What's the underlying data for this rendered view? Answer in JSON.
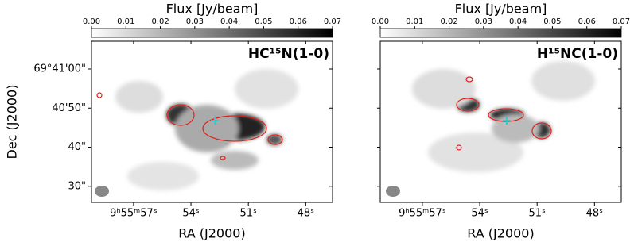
{
  "chart_data": [
    {
      "type": "heatmap",
      "title": "HC¹⁵N(1-0)",
      "colorbar_label": "Flux [Jy/beam]",
      "clim": [
        0,
        0.07
      ],
      "cticks": [
        {
          "value": 0,
          "label": "0.00"
        },
        0.01,
        0.02,
        0.03,
        0.04,
        0.05,
        0.06,
        0.07
      ],
      "xlabel": "RA (J2000)",
      "ylabel": "Dec (J2000)",
      "xlim": [
        59.2,
        46.6
      ],
      "xticks": [
        {
          "value": 57,
          "label": "9ʰ55ᵐ57ˢ"
        },
        {
          "value": 54,
          "label": "54ˢ"
        },
        {
          "value": 51,
          "label": "51ˢ"
        },
        {
          "value": 48,
          "label": "48ˢ"
        }
      ],
      "ylim": [
        25.9,
        67.1
      ],
      "yticks": [
        {
          "value": 30,
          "label": "30\""
        },
        {
          "value": 40,
          "label": "40\""
        },
        {
          "value": 50,
          "label": "40'50\""
        },
        {
          "value": 60,
          "label": "69°41'00\""
        }
      ]
    },
    {
      "type": "heatmap",
      "title": "H¹⁵NC(1-0)",
      "colorbar_label": "Flux [Jy/beam]",
      "clim": [
        0,
        0.07
      ],
      "cticks": [
        {
          "value": 0,
          "label": "0.00"
        },
        0.01,
        0.02,
        0.03,
        0.04,
        0.05,
        0.06,
        0.07
      ],
      "xlabel": "RA (J2000)",
      "xlim": [
        59.2,
        46.6
      ],
      "xticks": [
        {
          "value": 57,
          "label": "9ʰ55ᵐ57ˢ"
        },
        {
          "value": 54,
          "label": "54ˢ"
        },
        {
          "value": 51,
          "label": "51ˢ"
        },
        {
          "value": 48,
          "label": "48ˢ"
        }
      ],
      "ylim": [
        25.9,
        67.1
      ],
      "yticks": [
        30,
        40,
        50,
        60
      ]
    }
  ]
}
